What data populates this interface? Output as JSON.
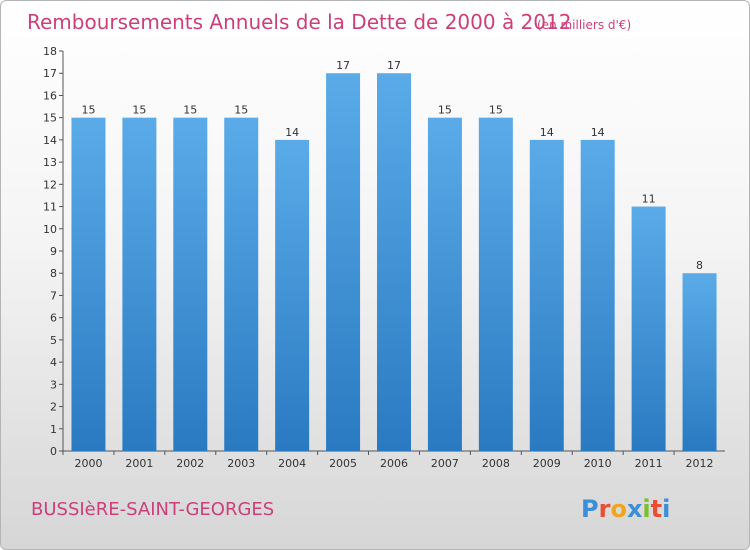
{
  "colors": {
    "title": "#cc3f7a",
    "bar_top": "#5aabe8",
    "bar_bottom": "#2a7ac2",
    "logo_letters": [
      "#3a8fd8",
      "#e94e35",
      "#f2a51a",
      "#3a8fd8",
      "#7bbf2a",
      "#e94e35",
      "#3a8fd8"
    ]
  },
  "location": "BUSSIèRE-SAINT-GEORGES",
  "logo": {
    "text": "Proxiti"
  },
  "chart_data": {
    "type": "bar",
    "title": "Remboursements Annuels de la Dette de 2000 à 2012",
    "subtitle": "(en milliers d'€)",
    "categories": [
      "2000",
      "2001",
      "2002",
      "2003",
      "2004",
      "2005",
      "2006",
      "2007",
      "2008",
      "2009",
      "2010",
      "2011",
      "2012"
    ],
    "values": [
      15,
      15,
      15,
      15,
      14,
      17,
      17,
      15,
      15,
      14,
      14,
      11,
      8
    ],
    "ylim": [
      0,
      18
    ],
    "yticks": [
      0,
      1,
      2,
      3,
      4,
      5,
      6,
      7,
      8,
      9,
      10,
      11,
      12,
      13,
      14,
      15,
      16,
      17,
      18
    ],
    "grid": false,
    "xlabel": "",
    "ylabel": ""
  }
}
